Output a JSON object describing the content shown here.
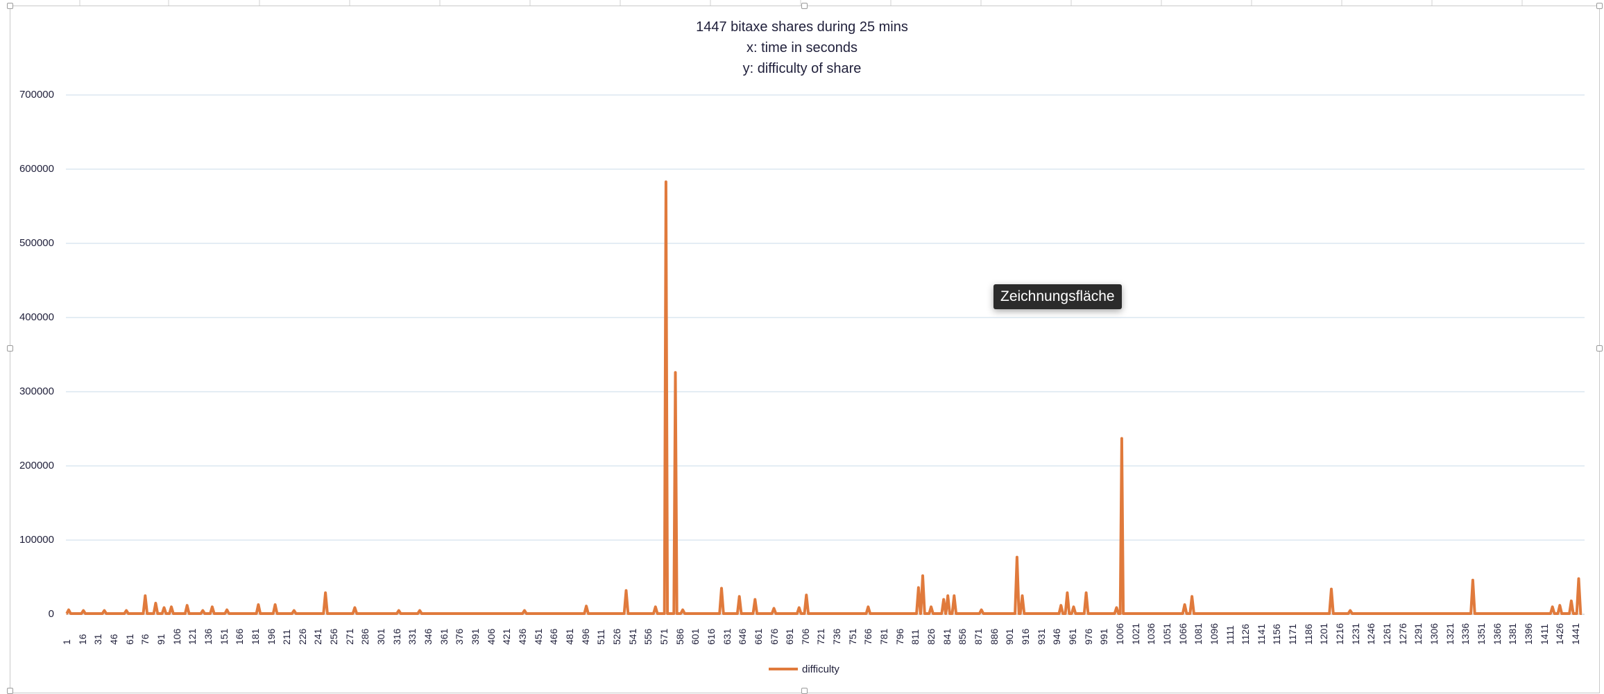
{
  "chart_data": {
    "type": "line",
    "title_lines": [
      "1447 bitaxe shares during 25 mins",
      "x: time in seconds",
      "y: difficulty of share"
    ],
    "xlabel": "",
    "ylabel": "",
    "xlim": [
      1,
      1447
    ],
    "ylim": [
      0,
      700000
    ],
    "y_ticks": [
      "0",
      "100000",
      "200000",
      "300000",
      "400000",
      "500000",
      "600000",
      "700000"
    ],
    "y_tick_values": [
      0,
      100000,
      200000,
      300000,
      400000,
      500000,
      600000,
      700000
    ],
    "x_tick_start": 1,
    "x_tick_step": 15,
    "x_tick_count": 97,
    "gridlines": "horizontal",
    "legend_position": "bottom",
    "color": "#e07a3c",
    "series": [
      {
        "name": "difficulty",
        "peaks": [
          {
            "x": 3,
            "y": 6000
          },
          {
            "x": 17,
            "y": 5000
          },
          {
            "x": 37,
            "y": 5000
          },
          {
            "x": 58,
            "y": 5000
          },
          {
            "x": 76,
            "y": 25000
          },
          {
            "x": 86,
            "y": 15000
          },
          {
            "x": 94,
            "y": 9000
          },
          {
            "x": 101,
            "y": 10000
          },
          {
            "x": 116,
            "y": 12000
          },
          {
            "x": 131,
            "y": 5000
          },
          {
            "x": 140,
            "y": 10000
          },
          {
            "x": 154,
            "y": 6000
          },
          {
            "x": 184,
            "y": 13000
          },
          {
            "x": 200,
            "y": 13000
          },
          {
            "x": 218,
            "y": 5000
          },
          {
            "x": 248,
            "y": 29000
          },
          {
            "x": 276,
            "y": 9000
          },
          {
            "x": 318,
            "y": 5000
          },
          {
            "x": 338,
            "y": 5000
          },
          {
            "x": 438,
            "y": 5000
          },
          {
            "x": 497,
            "y": 11000
          },
          {
            "x": 535,
            "y": 32000
          },
          {
            "x": 563,
            "y": 10000
          },
          {
            "x": 573,
            "y": 583000
          },
          {
            "x": 582,
            "y": 326000
          },
          {
            "x": 589,
            "y": 6000
          },
          {
            "x": 626,
            "y": 35000
          },
          {
            "x": 643,
            "y": 24000
          },
          {
            "x": 658,
            "y": 20000
          },
          {
            "x": 676,
            "y": 8000
          },
          {
            "x": 700,
            "y": 9000
          },
          {
            "x": 707,
            "y": 26000
          },
          {
            "x": 766,
            "y": 10000
          },
          {
            "x": 814,
            "y": 36000
          },
          {
            "x": 818,
            "y": 52000
          },
          {
            "x": 826,
            "y": 10000
          },
          {
            "x": 838,
            "y": 20000
          },
          {
            "x": 842,
            "y": 25000
          },
          {
            "x": 848,
            "y": 25000
          },
          {
            "x": 874,
            "y": 6000
          },
          {
            "x": 908,
            "y": 77000
          },
          {
            "x": 913,
            "y": 25000
          },
          {
            "x": 950,
            "y": 12000
          },
          {
            "x": 956,
            "y": 29000
          },
          {
            "x": 962,
            "y": 10000
          },
          {
            "x": 974,
            "y": 29000
          },
          {
            "x": 1003,
            "y": 9000
          },
          {
            "x": 1008,
            "y": 237000
          },
          {
            "x": 1068,
            "y": 13000
          },
          {
            "x": 1075,
            "y": 24000
          },
          {
            "x": 1208,
            "y": 34000
          },
          {
            "x": 1226,
            "y": 5000
          },
          {
            "x": 1343,
            "y": 46000
          },
          {
            "x": 1419,
            "y": 10000
          },
          {
            "x": 1426,
            "y": 12000
          },
          {
            "x": 1437,
            "y": 18000
          },
          {
            "x": 1444,
            "y": 48000
          }
        ]
      }
    ]
  },
  "overlay": {
    "tooltip_text": "Zeichnungsfläche"
  }
}
